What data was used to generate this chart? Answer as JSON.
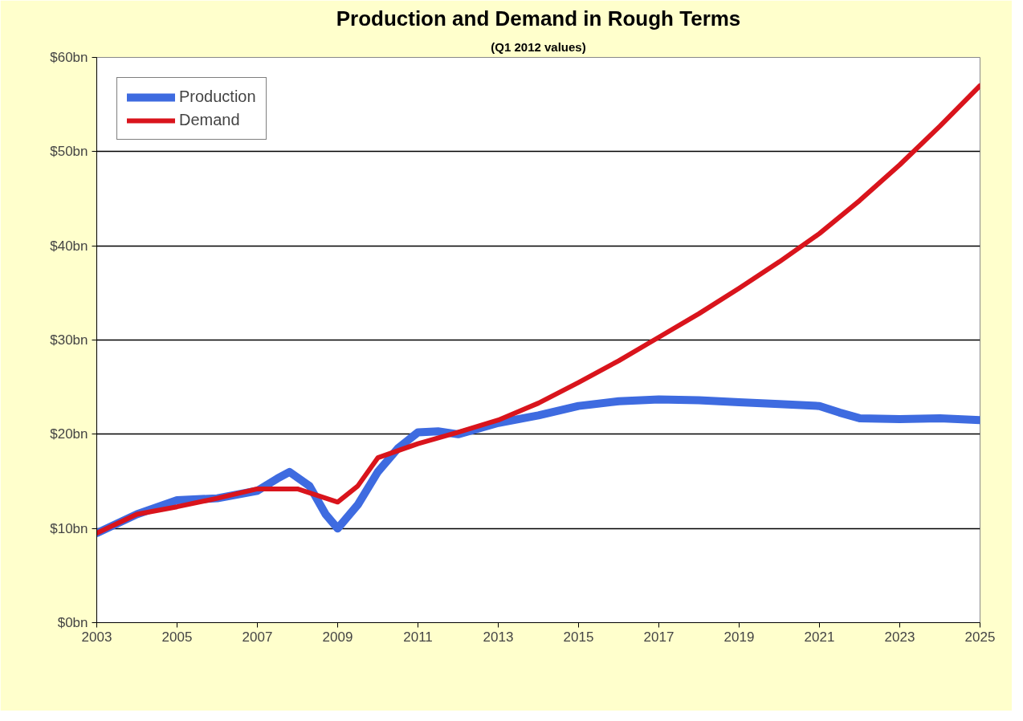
{
  "chart_data": {
    "type": "line",
    "title": "Production and Demand in Rough Terms",
    "subtitle": "(Q1 2012 values)",
    "xlim": [
      2003,
      2025
    ],
    "xticks": [
      2003,
      2005,
      2007,
      2009,
      2011,
      2013,
      2015,
      2017,
      2019,
      2021,
      2023,
      2025
    ],
    "ylim": [
      0,
      60
    ],
    "yticks": [
      {
        "value": 0,
        "label": "$0bn"
      },
      {
        "value": 10,
        "label": "$10bn"
      },
      {
        "value": 20,
        "label": "$20bn"
      },
      {
        "value": 30,
        "label": "$30bn"
      },
      {
        "value": 40,
        "label": "$40bn"
      },
      {
        "value": 50,
        "label": "$50bn"
      },
      {
        "value": 60,
        "label": "$60bn"
      }
    ],
    "grid": "y",
    "legend": "top left",
    "marker": "none",
    "line_style": "solid",
    "series": [
      {
        "name": "Production",
        "color": "#3e6be0",
        "x": [
          2003,
          2004,
          2005,
          2006,
          2007,
          2007.5,
          2007.8,
          2008.3,
          2008.7,
          2009,
          2009.5,
          2010,
          2010.5,
          2011,
          2011.5,
          2012,
          2013,
          2014,
          2015,
          2016,
          2017,
          2018,
          2019,
          2020,
          2021,
          2021.5,
          2022,
          2023,
          2024,
          2025
        ],
        "values": [
          9.5,
          11.5,
          13,
          13.2,
          14,
          15.3,
          16,
          14.5,
          11.5,
          10,
          12.5,
          16,
          18.5,
          20.2,
          20.3,
          20,
          21.2,
          22,
          23,
          23.5,
          23.7,
          23.6,
          23.4,
          23.2,
          23,
          22.3,
          21.7,
          21.6,
          21.7,
          21.5
        ]
      },
      {
        "name": "Demand",
        "color": "#d9141c",
        "x": [
          2003,
          2004,
          2005,
          2006,
          2007,
          2008,
          2008.5,
          2009,
          2009.5,
          2010,
          2011,
          2012,
          2013,
          2014,
          2015,
          2016,
          2017,
          2018,
          2019,
          2020,
          2021,
          2022,
          2023,
          2024,
          2025
        ],
        "values": [
          9.5,
          11.5,
          12.3,
          13.2,
          14.2,
          14.2,
          13.5,
          12.8,
          14.5,
          17.5,
          19,
          20.2,
          21.5,
          23.3,
          25.5,
          27.8,
          30.3,
          32.8,
          35.5,
          38.3,
          41.3,
          44.8,
          48.6,
          52.7,
          57
        ]
      }
    ]
  }
}
